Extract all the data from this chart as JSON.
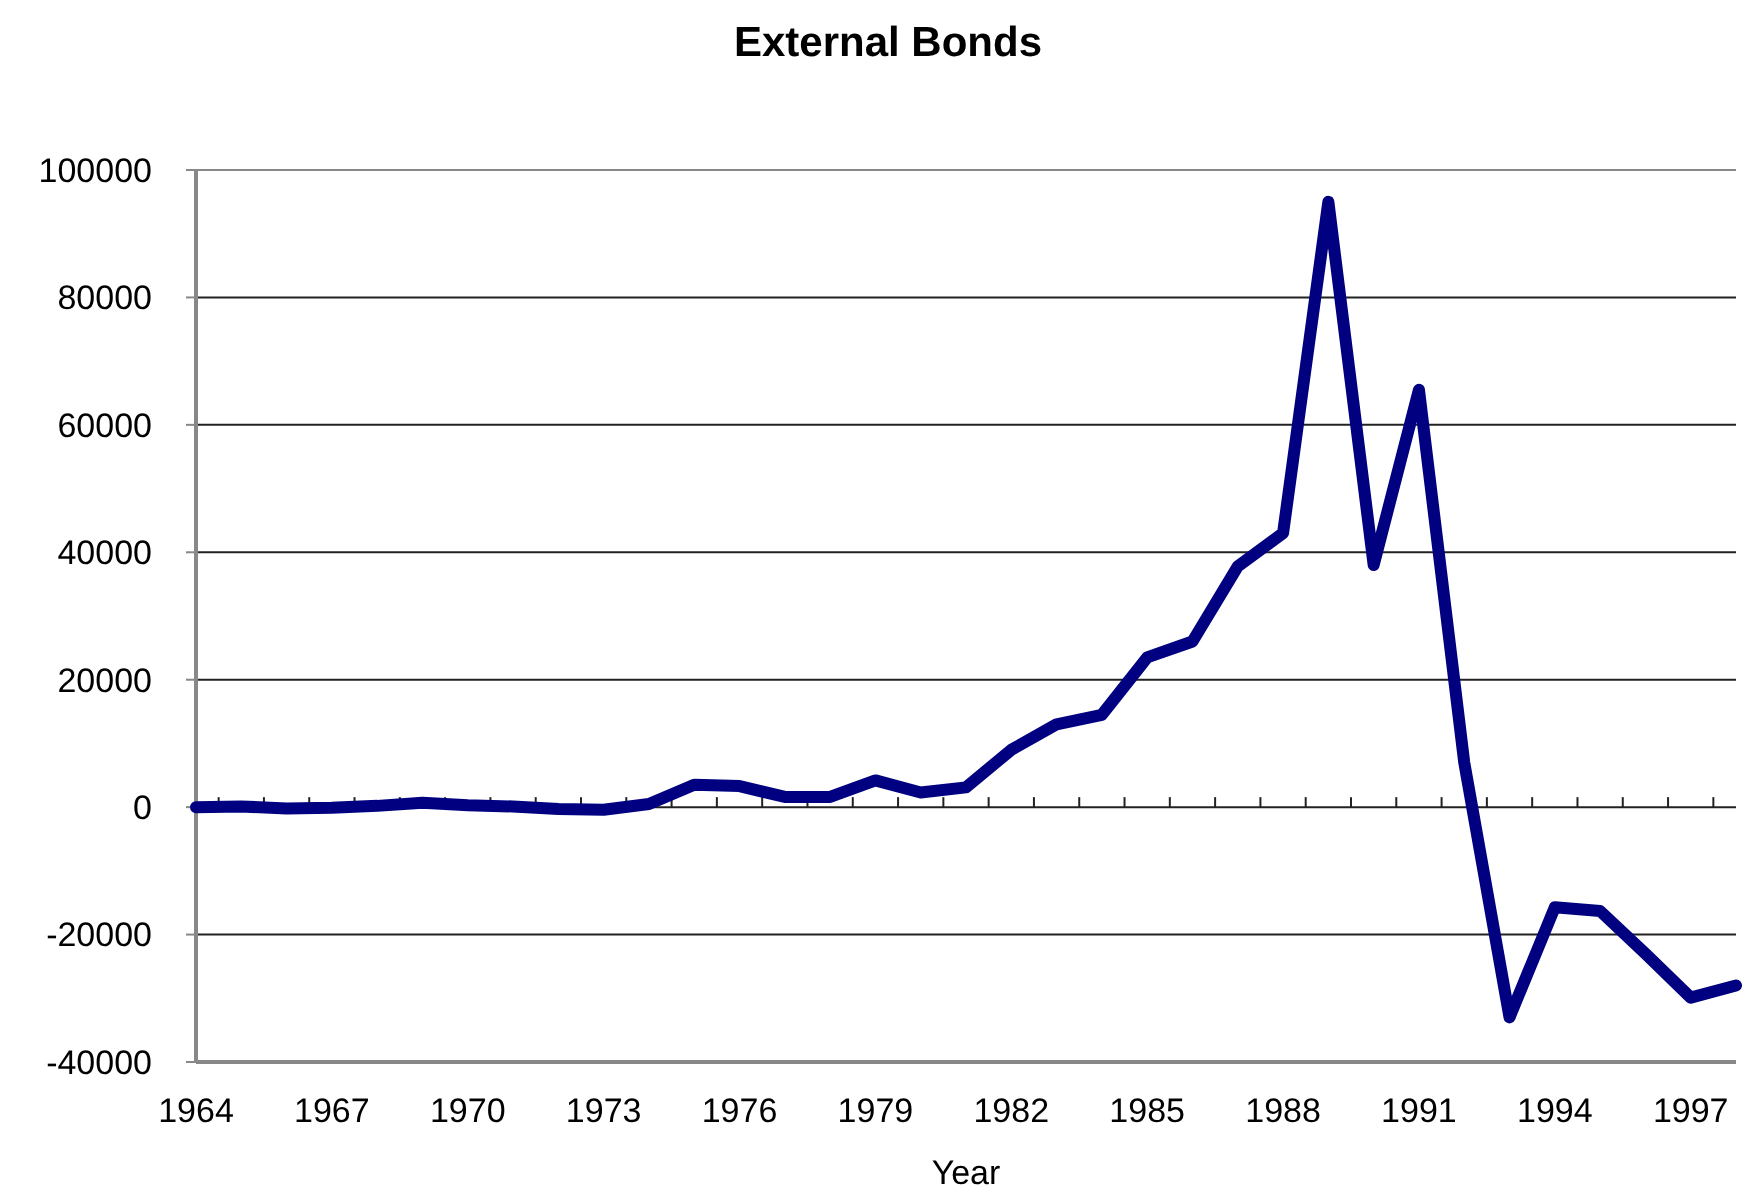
{
  "chart_data": {
    "type": "line",
    "title": "External Bonds",
    "xlabel": "Year",
    "x": [
      1964,
      1965,
      1966,
      1967,
      1968,
      1969,
      1970,
      1971,
      1972,
      1973,
      1974,
      1975,
      1976,
      1977,
      1978,
      1979,
      1980,
      1981,
      1982,
      1983,
      1984,
      1985,
      1986,
      1987,
      1988,
      1989,
      1990,
      1991,
      1992,
      1993,
      1994,
      1995,
      1996,
      1997,
      1998
    ],
    "series": [
      {
        "color": "#000080",
        "values": [
          0,
          100,
          -200,
          -100,
          200,
          700,
          300,
          100,
          -300,
          -400,
          500,
          3500,
          3300,
          1600,
          1600,
          4200,
          2300,
          3100,
          9000,
          13000,
          14500,
          23500,
          26000,
          37800,
          43000,
          95000,
          38000,
          65500,
          7000,
          -33000,
          -15700,
          -16300,
          -23000,
          -29900,
          -28000
        ]
      }
    ],
    "xlim": [
      1964,
      1998
    ],
    "xticks": [
      1964,
      {
        "value": 1964.5,
        "label": null
      },
      {
        "value": 1965.5,
        "label": null
      },
      {
        "value": 1966.5,
        "label": null
      },
      1967,
      {
        "value": 1967.5,
        "label": null
      },
      {
        "value": 1968.5,
        "label": null
      },
      {
        "value": 1969.5,
        "label": null
      },
      1970,
      {
        "value": 1970.5,
        "label": null
      },
      {
        "value": 1971.5,
        "label": null
      },
      {
        "value": 1972.5,
        "label": null
      },
      1973,
      {
        "value": 1973.5,
        "label": null
      },
      {
        "value": 1974.5,
        "label": null
      },
      {
        "value": 1975.5,
        "label": null
      },
      1976,
      {
        "value": 1976.5,
        "label": null
      },
      {
        "value": 1977.5,
        "label": null
      },
      {
        "value": 1978.5,
        "label": null
      },
      1979,
      {
        "value": 1979.5,
        "label": null
      },
      {
        "value": 1980.5,
        "label": null
      },
      {
        "value": 1981.5,
        "label": null
      },
      1982,
      {
        "value": 1982.5,
        "label": null
      },
      {
        "value": 1983.5,
        "label": null
      },
      {
        "value": 1984.5,
        "label": null
      },
      1985,
      {
        "value": 1985.5,
        "label": null
      },
      {
        "value": 1986.5,
        "label": null
      },
      {
        "value": 1987.5,
        "label": null
      },
      1988,
      {
        "value": 1988.5,
        "label": null
      },
      {
        "value": 1989.5,
        "label": null
      },
      {
        "value": 1990.5,
        "label": null
      },
      1991,
      {
        "value": 1991.5,
        "label": null
      },
      {
        "value": 1992.5,
        "label": null
      },
      {
        "value": 1993.5,
        "label": null
      },
      1994,
      {
        "value": 1994.5,
        "label": null
      },
      {
        "value": 1995.5,
        "label": null
      },
      {
        "value": 1996.5,
        "label": null
      },
      1997,
      {
        "value": 1997.5,
        "label": null
      }
    ],
    "ylim": [
      -40000,
      100000
    ],
    "yticks": [
      -40000,
      -20000,
      0,
      20000,
      40000,
      60000,
      80000,
      100000
    ],
    "grid": "y",
    "marker": "none",
    "line_style": "solid"
  }
}
